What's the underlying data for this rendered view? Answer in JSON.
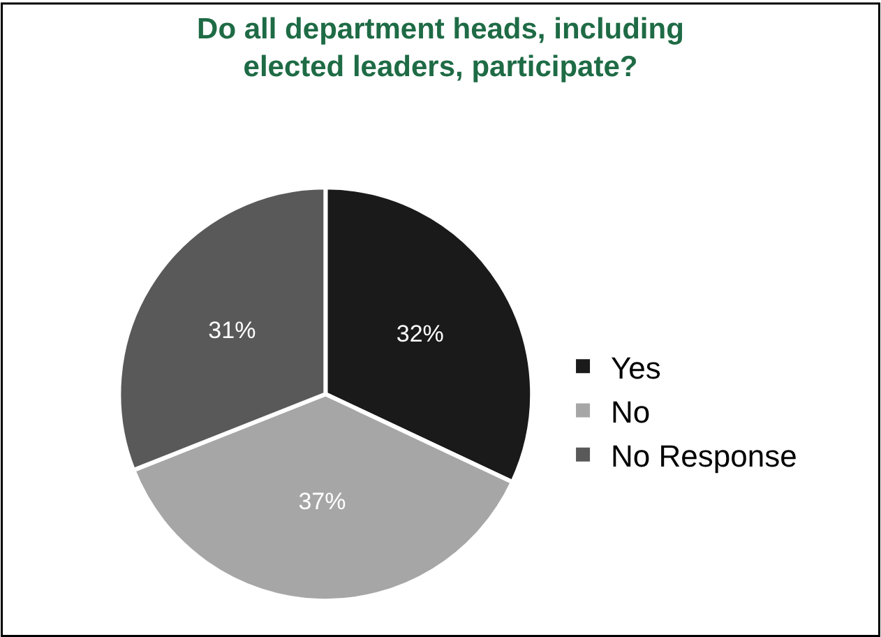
{
  "chart_data": {
    "type": "pie",
    "title": "Do all department heads, including\nelected leaders, participate?",
    "categories": [
      "Yes",
      "No",
      "No Response"
    ],
    "values": [
      32,
      37,
      31
    ],
    "value_labels": [
      "32%",
      "37%",
      "31%"
    ],
    "colors": [
      "#1a1a1a",
      "#a6a6a6",
      "#595959"
    ],
    "legend": "right"
  }
}
